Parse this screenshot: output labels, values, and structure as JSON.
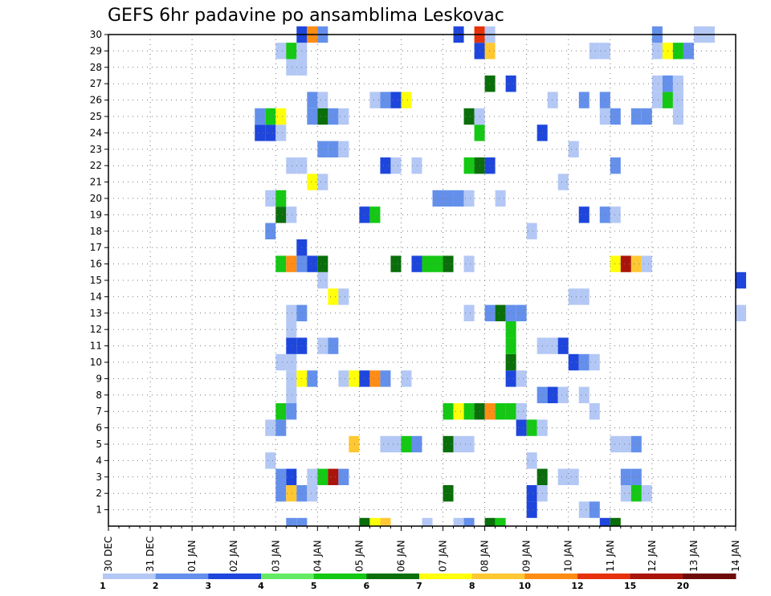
{
  "chart_data": {
    "type": "heatmap",
    "title": "GEFS 6hr padavine po ansamblima Leskovac",
    "y_ticks": [
      "1",
      "2",
      "3",
      "4",
      "5",
      "6",
      "7",
      "8",
      "9",
      "10",
      "11",
      "12",
      "13",
      "14",
      "15",
      "16",
      "17",
      "18",
      "19",
      "20",
      "21",
      "22",
      "23",
      "24",
      "25",
      "26",
      "27",
      "28",
      "29",
      "30"
    ],
    "ylim": [
      0,
      30
    ],
    "x_ticks": [
      "30 DEC",
      "31 DEC",
      "01 JAN",
      "02 JAN",
      "03 JAN",
      "04 JAN",
      "05 JAN",
      "06 JAN",
      "07 JAN",
      "08 JAN",
      "09 JAN",
      "10 JAN",
      "11 JAN",
      "12 JAN",
      "13 JAN",
      "14 JAN"
    ],
    "grid": true,
    "legend_position": "bottom",
    "legend": {
      "levels": [
        "1",
        "2",
        "3",
        "4",
        "5",
        "6",
        "7",
        "8",
        "10",
        "12",
        "15",
        "20"
      ],
      "colors": [
        "#b4c8f5",
        "#6490eb",
        "#1e46dc",
        "#64eb64",
        "#14c814",
        "#0a6e0a",
        "#ffff0a",
        "#ffc832",
        "#ff8c14",
        "#e6320a",
        "#aa140a",
        "#6e0a0a"
      ]
    },
    "cells": [
      [
        0,
        4.25,
        2
      ],
      [
        0,
        4.5,
        2
      ],
      [
        0,
        6.0,
        6
      ],
      [
        0,
        6.25,
        7
      ],
      [
        0,
        6.5,
        8
      ],
      [
        0,
        7.5,
        1
      ],
      [
        0,
        8.25,
        1
      ],
      [
        0,
        8.5,
        2
      ],
      [
        0,
        9.0,
        6
      ],
      [
        0,
        9.25,
        5
      ],
      [
        0,
        11.75,
        3
      ],
      [
        0,
        12.0,
        6
      ],
      [
        1,
        10.0,
        3
      ],
      [
        1,
        11.25,
        1
      ],
      [
        1,
        11.5,
        2
      ],
      [
        2,
        4.0,
        2
      ],
      [
        2,
        4.25,
        8
      ],
      [
        2,
        4.5,
        2
      ],
      [
        2,
        4.75,
        1
      ],
      [
        2,
        8.0,
        6
      ],
      [
        2,
        10.0,
        3
      ],
      [
        2,
        10.25,
        1
      ],
      [
        2,
        12.25,
        1
      ],
      [
        2,
        12.5,
        5
      ],
      [
        2,
        12.75,
        1
      ],
      [
        3,
        4.0,
        2
      ],
      [
        3,
        4.25,
        3
      ],
      [
        3,
        4.75,
        1
      ],
      [
        3,
        5.0,
        5
      ],
      [
        3,
        5.25,
        11
      ],
      [
        3,
        5.5,
        2
      ],
      [
        3,
        10.25,
        6
      ],
      [
        3,
        10.75,
        1
      ],
      [
        3,
        11.0,
        1
      ],
      [
        3,
        12.25,
        2
      ],
      [
        3,
        12.5,
        2
      ],
      [
        4,
        3.75,
        1
      ],
      [
        4,
        10.0,
        1
      ],
      [
        5,
        5.75,
        8
      ],
      [
        5,
        6.5,
        1
      ],
      [
        5,
        6.75,
        1
      ],
      [
        5,
        7.0,
        5
      ],
      [
        5,
        7.25,
        2
      ],
      [
        5,
        8.0,
        6
      ],
      [
        5,
        8.25,
        1
      ],
      [
        5,
        8.5,
        1
      ],
      [
        5,
        12.0,
        1
      ],
      [
        5,
        12.25,
        1
      ],
      [
        5,
        12.5,
        2
      ],
      [
        6,
        3.75,
        1
      ],
      [
        6,
        4.0,
        2
      ],
      [
        6,
        9.75,
        3
      ],
      [
        6,
        10.0,
        5
      ],
      [
        6,
        10.25,
        1
      ],
      [
        7,
        4.0,
        5
      ],
      [
        7,
        4.25,
        2
      ],
      [
        7,
        8.0,
        5
      ],
      [
        7,
        8.25,
        7
      ],
      [
        7,
        8.5,
        5
      ],
      [
        7,
        8.75,
        6
      ],
      [
        7,
        9.0,
        9
      ],
      [
        7,
        9.25,
        5
      ],
      [
        7,
        9.5,
        5
      ],
      [
        7,
        9.75,
        1
      ],
      [
        7,
        11.5,
        1
      ],
      [
        8,
        4.25,
        1
      ],
      [
        8,
        10.25,
        2
      ],
      [
        8,
        10.5,
        3
      ],
      [
        8,
        10.75,
        1
      ],
      [
        8,
        11.25,
        1
      ],
      [
        9,
        4.25,
        1
      ],
      [
        9,
        4.5,
        7
      ],
      [
        9,
        4.75,
        2
      ],
      [
        9,
        5.5,
        1
      ],
      [
        9,
        5.75,
        7
      ],
      [
        9,
        6.0,
        3
      ],
      [
        9,
        6.25,
        9
      ],
      [
        9,
        6.5,
        2
      ],
      [
        9,
        7.0,
        1
      ],
      [
        9,
        9.5,
        3
      ],
      [
        9,
        9.75,
        1
      ],
      [
        10,
        4.0,
        1
      ],
      [
        10,
        4.25,
        1
      ],
      [
        10,
        9.5,
        6
      ],
      [
        10,
        11.0,
        3
      ],
      [
        10,
        11.25,
        2
      ],
      [
        10,
        11.5,
        1
      ],
      [
        11,
        4.25,
        3
      ],
      [
        11,
        4.5,
        3
      ],
      [
        11,
        5.0,
        1
      ],
      [
        11,
        5.25,
        2
      ],
      [
        11,
        9.5,
        5
      ],
      [
        11,
        10.25,
        1
      ],
      [
        11,
        10.5,
        1
      ],
      [
        11,
        10.75,
        3
      ],
      [
        12,
        4.25,
        1
      ],
      [
        12,
        9.5,
        5
      ],
      [
        13,
        4.25,
        1
      ],
      [
        13,
        4.5,
        2
      ],
      [
        13,
        8.5,
        1
      ],
      [
        13,
        9.0,
        2
      ],
      [
        13,
        9.25,
        6
      ],
      [
        13,
        9.5,
        2
      ],
      [
        13,
        9.75,
        2
      ],
      [
        13,
        15.0,
        1
      ],
      [
        14,
        5.25,
        7
      ],
      [
        14,
        5.5,
        1
      ],
      [
        14,
        11.0,
        1
      ],
      [
        14,
        11.25,
        1
      ],
      [
        15,
        5.0,
        1
      ],
      [
        15,
        15.0,
        3
      ],
      [
        16,
        4.0,
        5
      ],
      [
        16,
        4.25,
        9
      ],
      [
        16,
        4.5,
        2
      ],
      [
        16,
        4.75,
        3
      ],
      [
        16,
        5.0,
        6
      ],
      [
        16,
        6.75,
        6
      ],
      [
        16,
        7.25,
        3
      ],
      [
        16,
        7.5,
        5
      ],
      [
        16,
        7.75,
        5
      ],
      [
        16,
        8.0,
        6
      ],
      [
        16,
        8.5,
        1
      ],
      [
        16,
        12.0,
        7
      ],
      [
        16,
        12.25,
        11
      ],
      [
        16,
        12.5,
        8
      ],
      [
        16,
        12.75,
        1
      ],
      [
        17,
        4.5,
        3
      ],
      [
        18,
        3.75,
        2
      ],
      [
        18,
        10.0,
        1
      ],
      [
        19,
        4.0,
        6
      ],
      [
        19,
        4.25,
        1
      ],
      [
        19,
        6.0,
        3
      ],
      [
        19,
        6.25,
        5
      ],
      [
        19,
        11.25,
        3
      ],
      [
        19,
        11.75,
        2
      ],
      [
        19,
        12.0,
        1
      ],
      [
        20,
        3.75,
        1
      ],
      [
        20,
        4.0,
        5
      ],
      [
        20,
        7.75,
        2
      ],
      [
        20,
        8.0,
        2
      ],
      [
        20,
        8.25,
        2
      ],
      [
        20,
        8.5,
        1
      ],
      [
        20,
        9.25,
        1
      ],
      [
        21,
        4.75,
        7
      ],
      [
        21,
        5.0,
        1
      ],
      [
        21,
        10.75,
        1
      ],
      [
        22,
        4.25,
        1
      ],
      [
        22,
        4.5,
        1
      ],
      [
        22,
        6.5,
        3
      ],
      [
        22,
        6.75,
        1
      ],
      [
        22,
        7.25,
        1
      ],
      [
        22,
        8.5,
        5
      ],
      [
        22,
        8.75,
        6
      ],
      [
        22,
        9.0,
        3
      ],
      [
        22,
        12.0,
        2
      ],
      [
        23,
        5.0,
        2
      ],
      [
        23,
        5.25,
        2
      ],
      [
        23,
        5.5,
        1
      ],
      [
        23,
        11.0,
        1
      ],
      [
        24,
        3.5,
        3
      ],
      [
        24,
        3.75,
        3
      ],
      [
        24,
        4.0,
        1
      ],
      [
        24,
        8.75,
        5
      ],
      [
        24,
        10.25,
        3
      ],
      [
        25,
        3.5,
        2
      ],
      [
        25,
        3.75,
        5
      ],
      [
        25,
        4.0,
        7
      ],
      [
        25,
        4.75,
        2
      ],
      [
        25,
        5.0,
        6
      ],
      [
        25,
        5.25,
        2
      ],
      [
        25,
        5.5,
        1
      ],
      [
        25,
        8.5,
        6
      ],
      [
        25,
        8.75,
        1
      ],
      [
        25,
        11.75,
        1
      ],
      [
        25,
        12.0,
        2
      ],
      [
        25,
        12.5,
        2
      ],
      [
        25,
        12.75,
        2
      ],
      [
        25,
        13.5,
        1
      ],
      [
        26,
        4.75,
        2
      ],
      [
        26,
        5.0,
        1
      ],
      [
        26,
        6.25,
        1
      ],
      [
        26,
        6.5,
        2
      ],
      [
        26,
        6.75,
        3
      ],
      [
        26,
        7.0,
        7
      ],
      [
        26,
        10.5,
        1
      ],
      [
        26,
        11.25,
        2
      ],
      [
        26,
        11.75,
        2
      ],
      [
        26,
        13.0,
        1
      ],
      [
        26,
        13.25,
        5
      ],
      [
        26,
        13.5,
        1
      ],
      [
        27,
        9.0,
        6
      ],
      [
        27,
        9.5,
        3
      ],
      [
        27,
        13.0,
        1
      ],
      [
        27,
        13.25,
        2
      ],
      [
        27,
        13.5,
        1
      ],
      [
        28,
        4.25,
        1
      ],
      [
        28,
        4.5,
        1
      ],
      [
        29,
        4.0,
        1
      ],
      [
        29,
        4.25,
        5
      ],
      [
        29,
        4.5,
        1
      ],
      [
        29,
        8.75,
        3
      ],
      [
        29,
        9.0,
        8
      ],
      [
        29,
        11.5,
        1
      ],
      [
        29,
        11.75,
        1
      ],
      [
        29,
        13.0,
        1
      ],
      [
        29,
        13.25,
        7
      ],
      [
        29,
        13.5,
        5
      ],
      [
        29,
        13.75,
        2
      ],
      [
        30,
        4.5,
        3
      ],
      [
        30,
        4.75,
        9
      ],
      [
        30,
        5.0,
        2
      ],
      [
        30,
        8.25,
        3
      ],
      [
        30,
        8.75,
        10
      ],
      [
        30,
        9.0,
        1
      ],
      [
        30,
        13.0,
        2
      ],
      [
        30,
        14.0,
        1
      ],
      [
        30,
        14.25,
        1
      ]
    ]
  }
}
